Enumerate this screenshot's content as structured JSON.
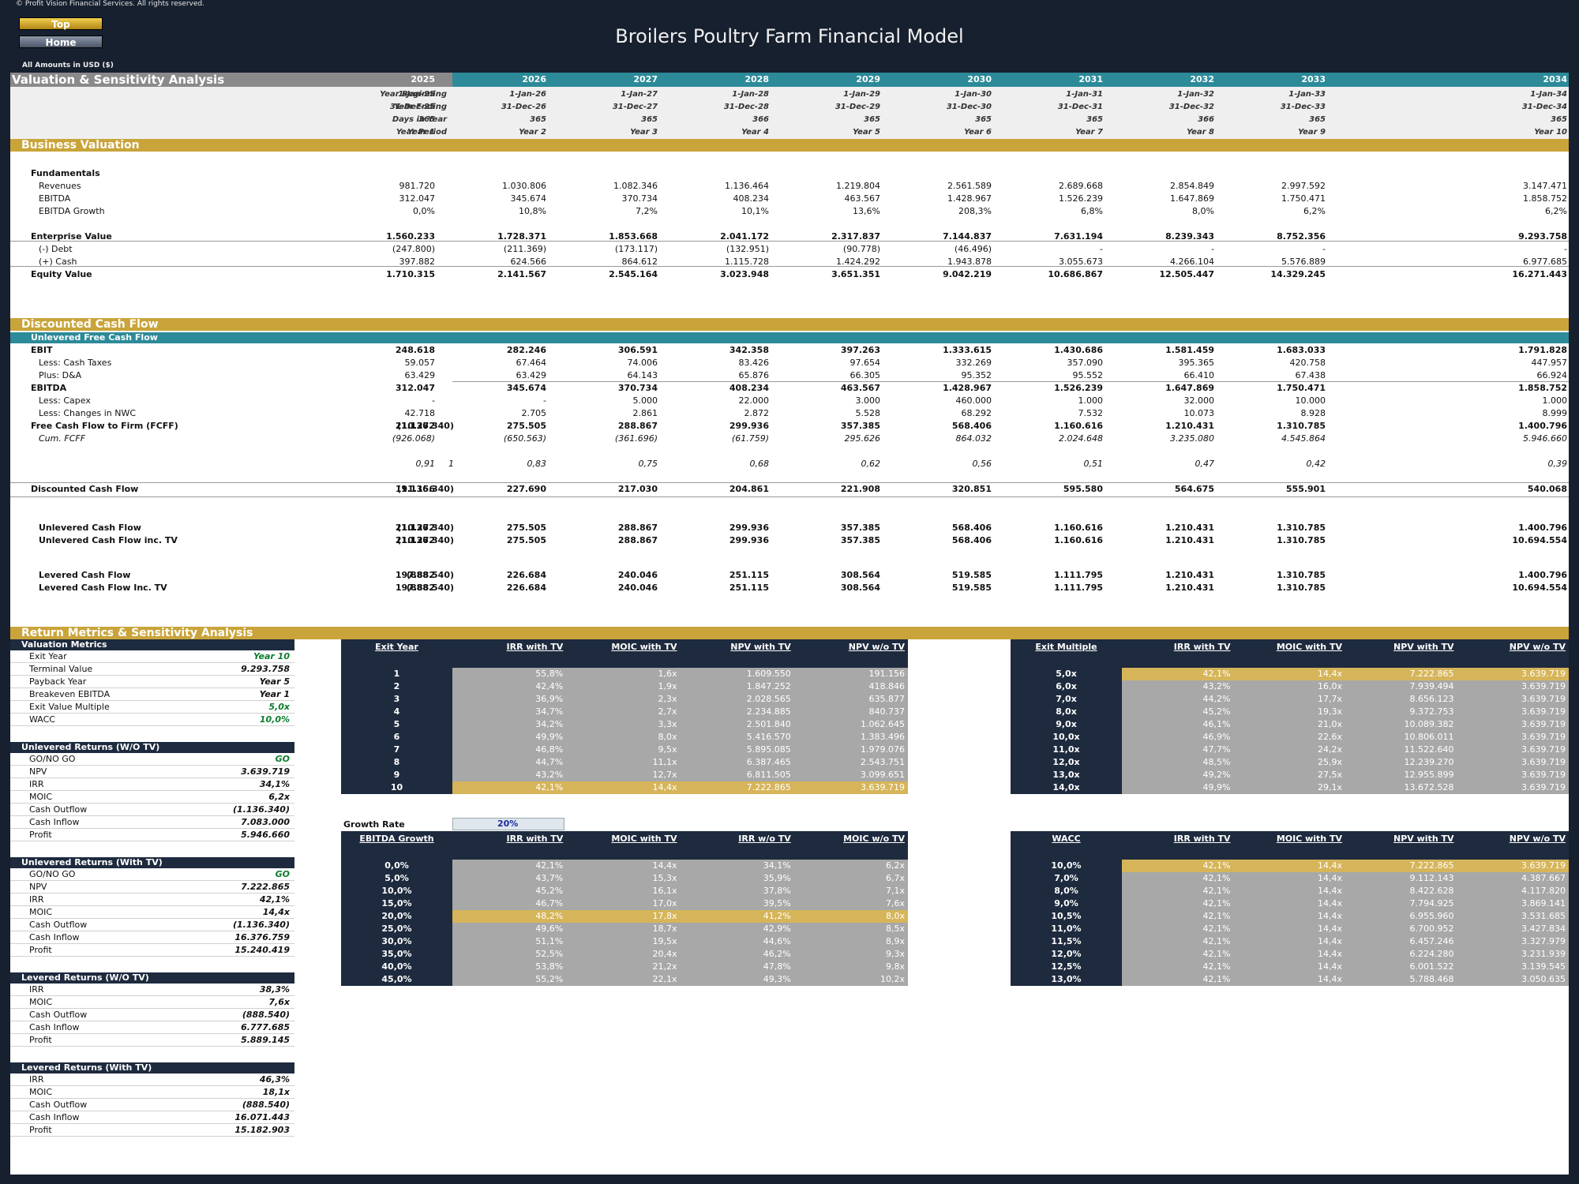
{
  "copyright": "© Profit Vision Financial Services. All rights reserved.",
  "nav": {
    "top": "Top",
    "home": "Home"
  },
  "title": "Broilers Poultry Farm Financial Model",
  "amounts": "All Amounts in  USD ($)",
  "section_title": "Valuation & Sensitivity Analysis",
  "years": [
    "2025",
    "2026",
    "2027",
    "2028",
    "2029",
    "2030",
    "2031",
    "2032",
    "2033",
    "2034"
  ],
  "meta": [
    {
      "label": "Year Beginning",
      "values": [
        "1-Jan-25",
        "1-Jan-26",
        "1-Jan-27",
        "1-Jan-28",
        "1-Jan-29",
        "1-Jan-30",
        "1-Jan-31",
        "1-Jan-32",
        "1-Jan-33",
        "1-Jan-34"
      ]
    },
    {
      "label": "Year Ending",
      "values": [
        "31-Dec-25",
        "31-Dec-26",
        "31-Dec-27",
        "31-Dec-28",
        "31-Dec-29",
        "31-Dec-30",
        "31-Dec-31",
        "31-Dec-32",
        "31-Dec-33",
        "31-Dec-34"
      ]
    },
    {
      "label": "Days in Year",
      "values": [
        "365",
        "365",
        "365",
        "366",
        "365",
        "365",
        "365",
        "366",
        "365",
        "365"
      ]
    },
    {
      "label": "Year Period",
      "values": [
        "Year 1",
        "Year 2",
        "Year 3",
        "Year 4",
        "Year 5",
        "Year 6",
        "Year 7",
        "Year 8",
        "Year 9",
        "Year 10"
      ]
    }
  ],
  "bands": {
    "bv": "Business Valuation",
    "dcf": "Discounted Cash Flow",
    "ret": "Return Metrics & Sensitivity Analysis",
    "ufcf": "Unlevered Free Cash Flow"
  },
  "bv_rows": [
    {
      "label": "Fundamentals",
      "bold": true,
      "values": []
    },
    {
      "label": "Revenues",
      "values": [
        "981.720",
        "1.030.806",
        "1.082.346",
        "1.136.464",
        "1.219.804",
        "2.561.589",
        "2.689.668",
        "2.854.849",
        "2.997.592",
        "3.147.471"
      ]
    },
    {
      "label": "EBITDA",
      "values": [
        "312.047",
        "345.674",
        "370.734",
        "408.234",
        "463.567",
        "1.428.967",
        "1.526.239",
        "1.647.869",
        "1.750.471",
        "1.858.752"
      ]
    },
    {
      "label": "EBITDA Growth",
      "values": [
        "0,0%",
        "10,8%",
        "7,2%",
        "10,1%",
        "13,6%",
        "208,3%",
        "6,8%",
        "8,0%",
        "6,2%",
        "6,2%"
      ]
    },
    {
      "label": "Enterprise Value",
      "bold": true,
      "values": [
        "1.560.233",
        "1.728.371",
        "1.853.668",
        "2.041.172",
        "2.317.837",
        "7.144.837",
        "7.631.194",
        "8.239.343",
        "8.752.356",
        "9.293.758"
      ]
    },
    {
      "label": "(-) Debt",
      "values": [
        "(247.800)",
        "(211.369)",
        "(173.117)",
        "(132.951)",
        "(90.778)",
        "(46.496)",
        "-",
        "-",
        "-",
        "-"
      ]
    },
    {
      "label": "(+) Cash",
      "values": [
        "397.882",
        "624.566",
        "864.612",
        "1.115.728",
        "1.424.292",
        "1.943.878",
        "3.055.673",
        "4.266.104",
        "5.576.889",
        "6.977.685"
      ]
    },
    {
      "label": "Equity Value",
      "bold": true,
      "values": [
        "1.710.315",
        "2.141.567",
        "2.545.164",
        "3.023.948",
        "3.651.351",
        "9.042.219",
        "10.686.867",
        "12.505.447",
        "14.329.245",
        "16.271.443"
      ]
    }
  ],
  "dcf_rows": [
    {
      "label": "EBIT",
      "bold": true,
      "pre": "",
      "values": [
        "248.618",
        "282.246",
        "306.591",
        "342.358",
        "397.263",
        "1.333.615",
        "1.430.686",
        "1.581.459",
        "1.683.033",
        "1.791.828"
      ]
    },
    {
      "label": "Less: Cash Taxes",
      "pre": "",
      "values": [
        "59.057",
        "67.464",
        "74.006",
        "83.426",
        "97.654",
        "332.269",
        "357.090",
        "395.365",
        "420.758",
        "447.957"
      ]
    },
    {
      "label": "Plus: D&A",
      "pre": "",
      "values": [
        "63.429",
        "63.429",
        "64.143",
        "65.876",
        "66.305",
        "95.352",
        "95.552",
        "66.410",
        "67.438",
        "66.924"
      ]
    },
    {
      "label": "EBITDA",
      "bold": true,
      "pre": "",
      "values": [
        "312.047",
        "345.674",
        "370.734",
        "408.234",
        "463.567",
        "1.428.967",
        "1.526.239",
        "1.647.869",
        "1.750.471",
        "1.858.752"
      ]
    },
    {
      "label": "Less: Capex",
      "pre": "",
      "values": [
        "-",
        "-",
        "5.000",
        "22.000",
        "3.000",
        "460.000",
        "1.000",
        "32.000",
        "10.000",
        "1.000"
      ]
    },
    {
      "label": "Less: Changes in NWC",
      "pre": "",
      "values": [
        "42.718",
        "2.705",
        "2.861",
        "2.872",
        "5.528",
        "68.292",
        "7.532",
        "10.073",
        "8.928",
        "8.999"
      ]
    },
    {
      "label": "Free Cash Flow to Firm (FCFF)",
      "bold": true,
      "pre": "(1.136.340)",
      "values": [
        "210.272",
        "275.505",
        "288.867",
        "299.936",
        "357.385",
        "568.406",
        "1.160.616",
        "1.210.431",
        "1.310.785",
        "1.400.796"
      ]
    },
    {
      "label": "Cum. FCFF",
      "italic": true,
      "pre": "",
      "values": [
        "(926.068)",
        "(650.563)",
        "(361.696)",
        "(61.759)",
        "295.626",
        "864.032",
        "2.024.648",
        "3.235.080",
        "4.545.864",
        "5.946.660"
      ]
    }
  ],
  "discount_factors": {
    "pre": "1",
    "values": [
      "0,91",
      "0,83",
      "0,75",
      "0,68",
      "0,62",
      "0,56",
      "0,51",
      "0,47",
      "0,42",
      "0,39"
    ]
  },
  "dcf_total": {
    "label": "Discounted Cash Flow",
    "pre": "(1.136.340)",
    "values": [
      "191.156",
      "227.690",
      "217.030",
      "204.861",
      "221.908",
      "320.851",
      "595.580",
      "564.675",
      "555.901",
      "540.068"
    ]
  },
  "cf_rows": [
    {
      "label": "Unlevered Cash Flow",
      "pre": "(1.136.340)",
      "values": [
        "210.272",
        "275.505",
        "288.867",
        "299.936",
        "357.385",
        "568.406",
        "1.160.616",
        "1.210.431",
        "1.310.785",
        "1.400.796"
      ]
    },
    {
      "label": "Unlevered Cash Flow inc. TV",
      "pre": "(1.136.340)",
      "values": [
        "210.272",
        "275.505",
        "288.867",
        "299.936",
        "357.385",
        "568.406",
        "1.160.616",
        "1.210.431",
        "1.310.785",
        "10.694.554"
      ]
    },
    {
      "label": "Levered Cash Flow",
      "pre": "(888.540)",
      "values": [
        "197.882",
        "226.684",
        "240.046",
        "251.115",
        "308.564",
        "519.585",
        "1.111.795",
        "1.210.431",
        "1.310.785",
        "1.400.796"
      ]
    },
    {
      "label": "Levered Cash Flow Inc. TV",
      "pre": "(888.540)",
      "values": [
        "197.882",
        "226.684",
        "240.046",
        "251.115",
        "308.564",
        "519.585",
        "1.111.795",
        "1.210.431",
        "1.310.785",
        "10.694.554"
      ]
    }
  ],
  "panels": [
    {
      "title": "Valuation Metrics",
      "rows": [
        [
          "Exit Year",
          "Year 10",
          "green"
        ],
        [
          "Terminal Value",
          "9.293.758",
          ""
        ],
        [
          "Payback Year",
          "Year 5",
          ""
        ],
        [
          "Breakeven EBITDA",
          "Year 1",
          ""
        ],
        [
          "Exit Value Multiple",
          "5,0x",
          "green"
        ],
        [
          "WACC",
          "10,0%",
          "green"
        ]
      ]
    },
    {
      "title": "Unlevered Returns (W/O TV)",
      "rows": [
        [
          "GO/NO GO",
          "GO",
          "green"
        ],
        [
          "NPV",
          "3.639.719",
          ""
        ],
        [
          "IRR",
          "34,1%",
          ""
        ],
        [
          "MOIC",
          "6,2x",
          ""
        ],
        [
          "Cash Outflow",
          "(1.136.340)",
          ""
        ],
        [
          "Cash Inflow",
          "7.083.000",
          ""
        ],
        [
          "Profit",
          "5.946.660",
          ""
        ]
      ]
    },
    {
      "title": "Unlevered Returns (With TV)",
      "rows": [
        [
          "GO/NO GO",
          "GO",
          "green"
        ],
        [
          "NPV",
          "7.222.865",
          ""
        ],
        [
          "IRR",
          "42,1%",
          ""
        ],
        [
          "MOIC",
          "14,4x",
          ""
        ],
        [
          "Cash Outflow",
          "(1.136.340)",
          ""
        ],
        [
          "Cash Inflow",
          "16.376.759",
          ""
        ],
        [
          "Profit",
          "15.240.419",
          ""
        ]
      ]
    },
    {
      "title": "Levered Returns (W/O TV)",
      "rows": [
        [
          "IRR",
          "38,3%",
          ""
        ],
        [
          "MOIC",
          "7,6x",
          ""
        ],
        [
          "Cash Outflow",
          "(888.540)",
          ""
        ],
        [
          "Cash Inflow",
          "6.777.685",
          ""
        ],
        [
          "Profit",
          "5.889.145",
          ""
        ]
      ]
    },
    {
      "title": "Levered Returns (With TV)",
      "rows": [
        [
          "IRR",
          "46,3%",
          ""
        ],
        [
          "MOIC",
          "18,1x",
          ""
        ],
        [
          "Cash Outflow",
          "(888.540)",
          ""
        ],
        [
          "Cash Inflow",
          "16.071.443",
          ""
        ],
        [
          "Profit",
          "15.182.903",
          ""
        ]
      ]
    }
  ],
  "growth_rate": {
    "label": "Growth Rate",
    "value": "20%"
  },
  "sens_tables": [
    {
      "headers": [
        "Exit Year",
        "IRR with TV",
        "MOIC with TV",
        "NPV with TV",
        "NPV w/o TV"
      ],
      "highlight": 9,
      "rows": [
        [
          "1",
          "55,8%",
          "1,6x",
          "1.609.550",
          "191.156"
        ],
        [
          "2",
          "42,4%",
          "1,9x",
          "1.847.252",
          "418.846"
        ],
        [
          "3",
          "36,9%",
          "2,3x",
          "2.028.565",
          "635.877"
        ],
        [
          "4",
          "34,7%",
          "2,7x",
          "2.234.885",
          "840.737"
        ],
        [
          "5",
          "34,2%",
          "3,3x",
          "2.501.840",
          "1.062.645"
        ],
        [
          "6",
          "49,9%",
          "8,0x",
          "5.416.570",
          "1.383.496"
        ],
        [
          "7",
          "46,8%",
          "9,5x",
          "5.895.085",
          "1.979.076"
        ],
        [
          "8",
          "44,7%",
          "11,1x",
          "6.387.465",
          "2.543.751"
        ],
        [
          "9",
          "43,2%",
          "12,7x",
          "6.811.505",
          "3.099.651"
        ],
        [
          "10",
          "42,1%",
          "14,4x",
          "7.222.865",
          "3.639.719"
        ]
      ]
    },
    {
      "headers": [
        "Exit Multiple",
        "IRR with TV",
        "MOIC with TV",
        "NPV with TV",
        "NPV w/o TV"
      ],
      "highlight": 0,
      "rows": [
        [
          "5,0x",
          "42,1%",
          "14,4x",
          "7.222.865",
          "3.639.719"
        ],
        [
          "6,0x",
          "43,2%",
          "16,0x",
          "7.939.494",
          "3.639.719"
        ],
        [
          "7,0x",
          "44,2%",
          "17,7x",
          "8.656.123",
          "3.639.719"
        ],
        [
          "8,0x",
          "45,2%",
          "19,3x",
          "9.372.753",
          "3.639.719"
        ],
        [
          "9,0x",
          "46,1%",
          "21,0x",
          "10.089.382",
          "3.639.719"
        ],
        [
          "10,0x",
          "46,9%",
          "22,6x",
          "10.806.011",
          "3.639.719"
        ],
        [
          "11,0x",
          "47,7%",
          "24,2x",
          "11.522.640",
          "3.639.719"
        ],
        [
          "12,0x",
          "48,5%",
          "25,9x",
          "12.239.270",
          "3.639.719"
        ],
        [
          "13,0x",
          "49,2%",
          "27,5x",
          "12.955.899",
          "3.639.719"
        ],
        [
          "14,0x",
          "49,9%",
          "29,1x",
          "13.672.528",
          "3.639.719"
        ]
      ]
    },
    {
      "headers": [
        "EBITDA Growth",
        "IRR with TV",
        "MOIC with TV",
        "IRR w/o TV",
        "MOIC w/o TV"
      ],
      "highlight": 4,
      "rows": [
        [
          "0,0%",
          "42,1%",
          "14,4x",
          "34,1%",
          "6,2x"
        ],
        [
          "5,0%",
          "43,7%",
          "15,3x",
          "35,9%",
          "6,7x"
        ],
        [
          "10,0%",
          "45,2%",
          "16,1x",
          "37,8%",
          "7,1x"
        ],
        [
          "15,0%",
          "46,7%",
          "17,0x",
          "39,5%",
          "7,6x"
        ],
        [
          "20,0%",
          "48,2%",
          "17,8x",
          "41,2%",
          "8,0x"
        ],
        [
          "25,0%",
          "49,6%",
          "18,7x",
          "42,9%",
          "8,5x"
        ],
        [
          "30,0%",
          "51,1%",
          "19,5x",
          "44,6%",
          "8,9x"
        ],
        [
          "35,0%",
          "52,5%",
          "20,4x",
          "46,2%",
          "9,3x"
        ],
        [
          "40,0%",
          "53,8%",
          "21,2x",
          "47,8%",
          "9,8x"
        ],
        [
          "45,0%",
          "55,2%",
          "22,1x",
          "49,3%",
          "10,2x"
        ]
      ]
    },
    {
      "headers": [
        "WACC",
        "IRR with TV",
        "MOIC with TV",
        "NPV with TV",
        "NPV w/o TV"
      ],
      "highlight": 0,
      "rows": [
        [
          "10,0%",
          "42,1%",
          "14,4x",
          "7.222.865",
          "3.639.719"
        ],
        [
          "7,0%",
          "42,1%",
          "14,4x",
          "9.112.143",
          "4.387.667"
        ],
        [
          "8,0%",
          "42,1%",
          "14,4x",
          "8.422.628",
          "4.117.820"
        ],
        [
          "9,0%",
          "42,1%",
          "14,4x",
          "7.794.925",
          "3.869.141"
        ],
        [
          "10,5%",
          "42,1%",
          "14,4x",
          "6.955.960",
          "3.531.685"
        ],
        [
          "11,0%",
          "42,1%",
          "14,4x",
          "6.700.952",
          "3.427.834"
        ],
        [
          "11,5%",
          "42,1%",
          "14,4x",
          "6.457.246",
          "3.327.979"
        ],
        [
          "12,0%",
          "42,1%",
          "14,4x",
          "6.224.280",
          "3.231.939"
        ],
        [
          "12,5%",
          "42,1%",
          "14,4x",
          "6.001.522",
          "3.139.545"
        ],
        [
          "13,0%",
          "42,1%",
          "14,4x",
          "5.788.468",
          "3.050.635"
        ]
      ]
    }
  ]
}
